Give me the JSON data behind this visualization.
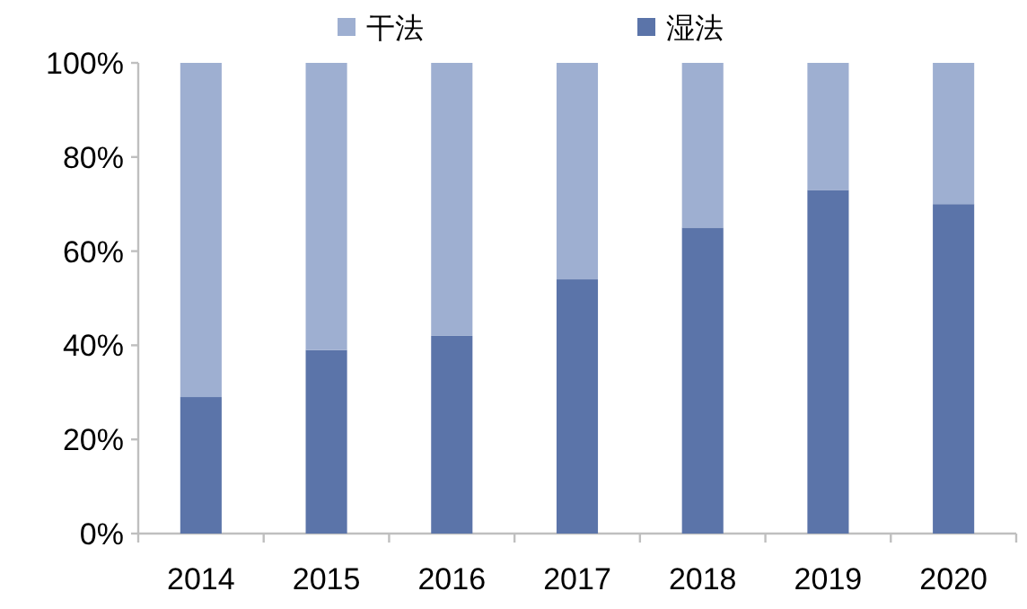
{
  "chart_data": {
    "type": "bar",
    "stacked": true,
    "legend": "top",
    "categories": [
      "2014",
      "2015",
      "2016",
      "2017",
      "2018",
      "2019",
      "2020"
    ],
    "series": [
      {
        "name": "湿法",
        "color": "#5b74a9",
        "values": [
          29,
          39,
          42,
          54,
          65,
          73,
          70
        ]
      },
      {
        "name": "干法",
        "color": "#9eafd1",
        "values": [
          71,
          61,
          58,
          46,
          35,
          27,
          30
        ]
      }
    ],
    "ylim": [
      0,
      100
    ],
    "yticks": [
      {
        "value": 0,
        "label": "0%"
      },
      {
        "value": 20,
        "label": "20%"
      },
      {
        "value": 40,
        "label": "40%"
      },
      {
        "value": 60,
        "label": "60%"
      },
      {
        "value": 80,
        "label": "80%"
      },
      {
        "value": 100,
        "label": "100%"
      }
    ],
    "grid": false
  }
}
